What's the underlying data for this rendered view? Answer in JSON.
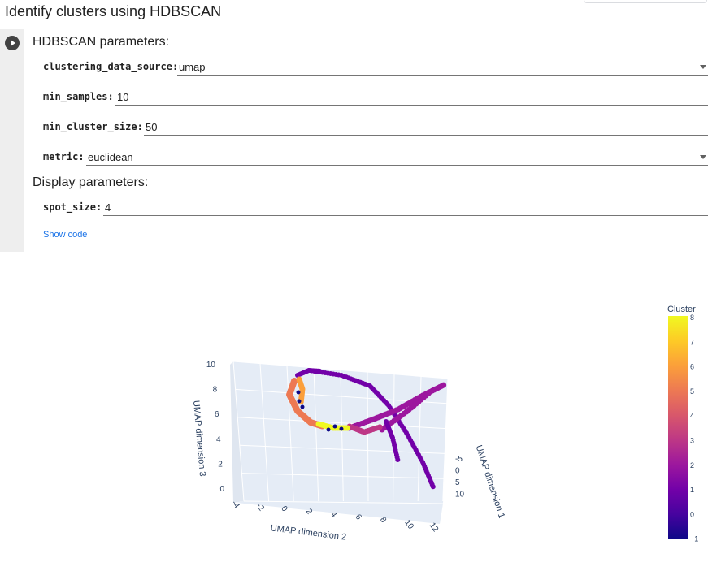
{
  "page": {
    "title": "Identify clusters using HDBSCAN"
  },
  "form": {
    "hdbscan_title": "HDBSCAN parameters:",
    "display_title": "Display parameters:",
    "fields": {
      "clustering_data_source": {
        "label": "clustering_data_source:",
        "value": "umap"
      },
      "min_samples": {
        "label": "min_samples:",
        "value": "10"
      },
      "min_cluster_size": {
        "label": "min_cluster_size:",
        "value": "50"
      },
      "metric": {
        "label": "metric:",
        "value": "euclidean"
      },
      "spot_size": {
        "label": "spot_size:",
        "value": "4"
      }
    },
    "show_code": "Show code"
  },
  "chart_data": {
    "type": "scatter",
    "dimensions": 3,
    "xlabel": "UMAP dimension 2",
    "ylabel": "UMAP dimension 3",
    "zlabel": "UMAP dimension 1",
    "x_ticks": [
      "-4",
      "-2",
      "0",
      "2",
      "4",
      "6",
      "8",
      "10",
      "12"
    ],
    "y_ticks": [
      "0",
      "2",
      "4",
      "6",
      "8",
      "10"
    ],
    "z_ticks": [
      "-5",
      "0",
      "5",
      "10"
    ],
    "colorbar": {
      "title": "Cluster",
      "ticks": [
        "8",
        "7",
        "6",
        "5",
        "4",
        "3",
        "2",
        "1",
        "0",
        "−1"
      ],
      "range": [
        -1,
        8
      ],
      "colors": [
        "#0d0887",
        "#46039f",
        "#7201a8",
        "#9c179e",
        "#bd3786",
        "#d8576b",
        "#ed7953",
        "#fb9f3a",
        "#fdca26",
        "#f0f921"
      ]
    }
  }
}
